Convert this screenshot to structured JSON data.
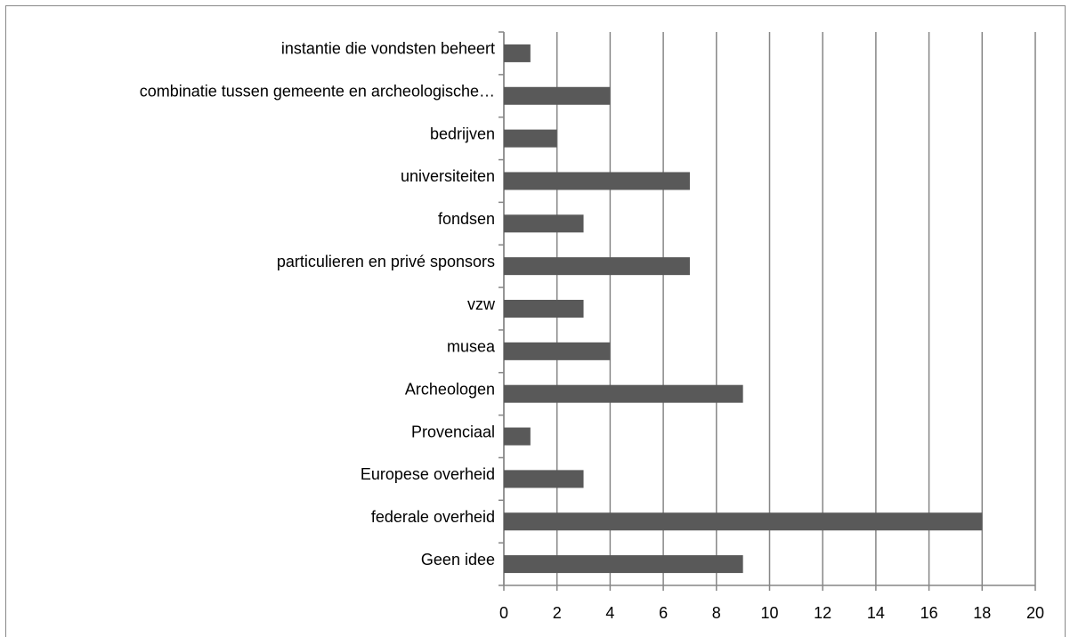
{
  "chart_data": {
    "type": "bar",
    "orientation": "horizontal",
    "categories": [
      "Geen idee",
      "federale overheid",
      "Europese overheid",
      "Provenciaal",
      "Archeologen",
      "musea",
      "vzw",
      "particulieren en privé sponsors",
      "fondsen",
      "universiteiten",
      "bedrijven",
      "combinatie tussen gemeente en archeologische…",
      "instantie die vondsten beheert"
    ],
    "values": [
      9,
      18,
      3,
      1,
      9,
      4,
      3,
      7,
      3,
      7,
      2,
      4,
      1
    ],
    "color": "#595959",
    "xlim": [
      0,
      20
    ],
    "xticks": [
      0,
      2,
      4,
      6,
      8,
      10,
      12,
      14,
      16,
      18,
      20
    ],
    "grid": true
  }
}
